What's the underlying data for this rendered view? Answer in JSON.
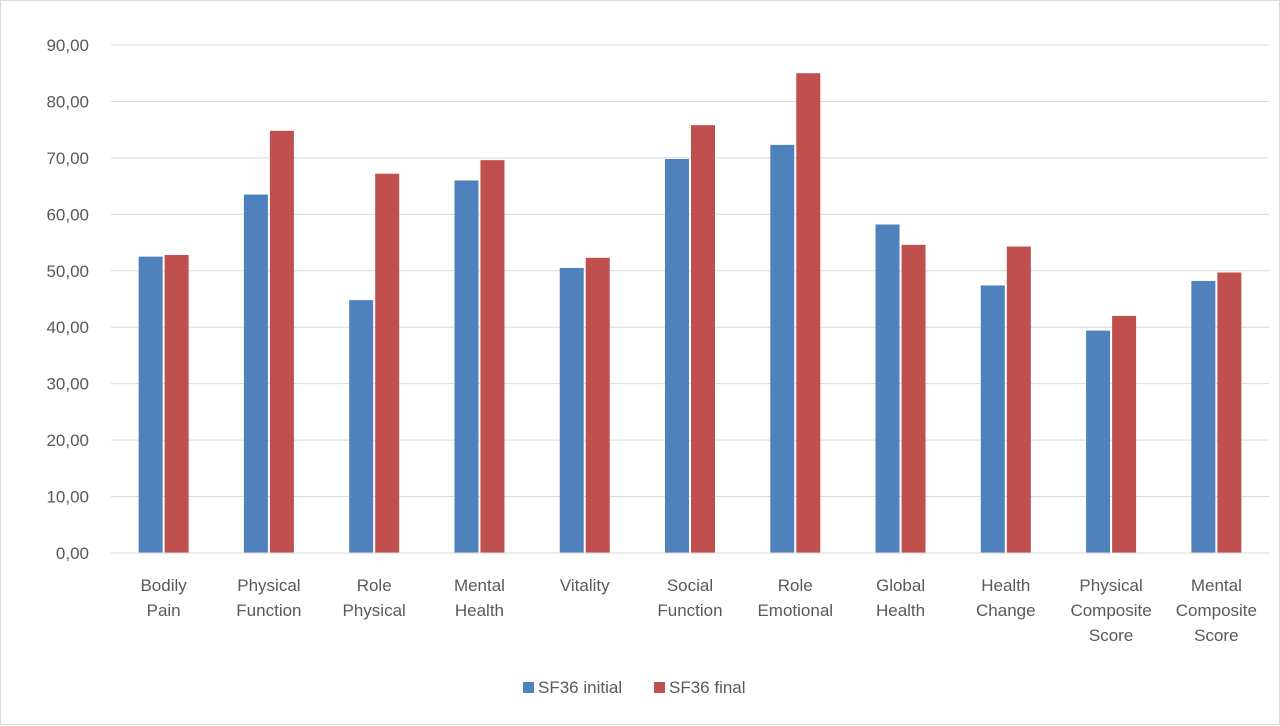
{
  "chart_data": {
    "type": "bar",
    "title": "",
    "xlabel": "",
    "ylabel": "",
    "ylim": [
      0,
      90
    ],
    "y_ticks": [
      "0,00",
      "10,00",
      "20,00",
      "30,00",
      "40,00",
      "50,00",
      "60,00",
      "70,00",
      "80,00",
      "90,00"
    ],
    "grid": true,
    "legend_position": "bottom",
    "categories": [
      [
        "Bodily",
        "Pain"
      ],
      [
        "Physical",
        "Function"
      ],
      [
        "Role",
        "Physical"
      ],
      [
        "Mental",
        "Health"
      ],
      [
        "Vitality"
      ],
      [
        "Social",
        "Function"
      ],
      [
        "Role",
        "Emotional"
      ],
      [
        "Global",
        "Health"
      ],
      [
        "Health",
        "Change"
      ],
      [
        "Physical",
        "Composite",
        "Score"
      ],
      [
        "Mental",
        "Composite",
        "Score"
      ]
    ],
    "series": [
      {
        "name": "SF36 initial",
        "color": "#4f81bd",
        "values": [
          52.5,
          63.5,
          44.8,
          66.0,
          50.5,
          69.8,
          72.3,
          58.2,
          47.4,
          39.4,
          48.2
        ]
      },
      {
        "name": "SF36 final",
        "color": "#c0504d",
        "values": [
          52.8,
          74.8,
          67.2,
          69.6,
          52.3,
          75.8,
          85.0,
          54.6,
          54.3,
          42.0,
          49.7
        ]
      }
    ]
  }
}
